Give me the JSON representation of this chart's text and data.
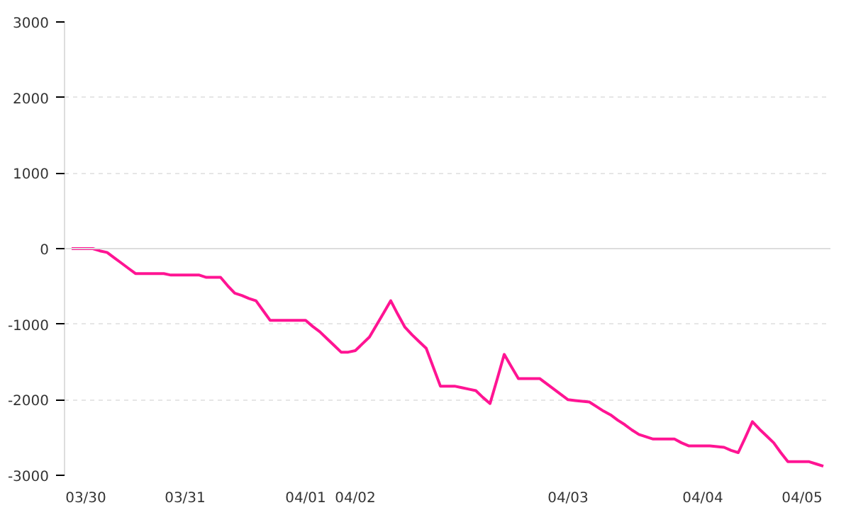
{
  "chart_data": {
    "type": "line",
    "color": "#ff1493",
    "categories": [
      null,
      null,
      "03/30",
      null,
      null,
      null,
      null,
      null,
      null,
      null,
      null,
      null,
      null,
      null,
      null,
      null,
      "03/31",
      null,
      null,
      null,
      null,
      null,
      null,
      null,
      null,
      null,
      null,
      null,
      null,
      null,
      null,
      null,
      null,
      "04/01",
      null,
      null,
      null,
      null,
      null,
      null,
      "04/02",
      null,
      null,
      null,
      null,
      null,
      null,
      null,
      null,
      null,
      null,
      null,
      null,
      null,
      null,
      null,
      null,
      null,
      null,
      null,
      null,
      null,
      null,
      null,
      null,
      null,
      null,
      null,
      null,
      null,
      "04/03",
      null,
      null,
      null,
      null,
      null,
      null,
      null,
      null,
      null,
      null,
      null,
      null,
      null,
      null,
      null,
      null,
      null,
      null,
      "04/04",
      null,
      null,
      null,
      null,
      null,
      null,
      null,
      null,
      null,
      null,
      null,
      null,
      null,
      "04/05",
      null,
      null,
      null
    ],
    "values": [
      0,
      0,
      0,
      0,
      -30,
      -50,
      -120,
      -190,
      -260,
      -330,
      -330,
      -330,
      -330,
      -330,
      -350,
      -350,
      -350,
      -350,
      -350,
      -380,
      -380,
      -380,
      -490,
      -590,
      -620,
      -660,
      -690,
      -820,
      -950,
      -950,
      -950,
      -950,
      -950,
      -950,
      -1030,
      -1100,
      -1190,
      -1280,
      -1370,
      -1370,
      -1350,
      -1260,
      -1170,
      -1010,
      -850,
      -690,
      -870,
      -1040,
      -1140,
      -1230,
      -1320,
      -1570,
      -1820,
      -1820,
      -1820,
      -1840,
      -1860,
      -1880,
      -1970,
      -2050,
      -1730,
      -1400,
      -1560,
      -1720,
      -1720,
      -1720,
      -1720,
      -1790,
      -1860,
      -1930,
      -2000,
      -2010,
      -2020,
      -2030,
      -2090,
      -2150,
      -2200,
      -2270,
      -2330,
      -2400,
      -2460,
      -2490,
      -2520,
      -2520,
      -2520,
      -2520,
      -2570,
      -2610,
      -2610,
      -2610,
      -2610,
      -2620,
      -2630,
      -2670,
      -2700,
      -2500,
      -2290,
      -2390,
      -2480,
      -2570,
      -2700,
      -2820,
      -2820,
      -2820,
      -2820,
      -2850,
      -2880
    ],
    "ylim": [
      -3000,
      3000
    ],
    "yticks": [
      -3000,
      -2000,
      -1000,
      0,
      1000,
      2000,
      3000
    ],
    "grid": "y",
    "ref_lines": [
      {
        "axis": "y",
        "value": 0,
        "color": "#dddddd"
      }
    ],
    "marker": "none",
    "line_style": "solid"
  }
}
